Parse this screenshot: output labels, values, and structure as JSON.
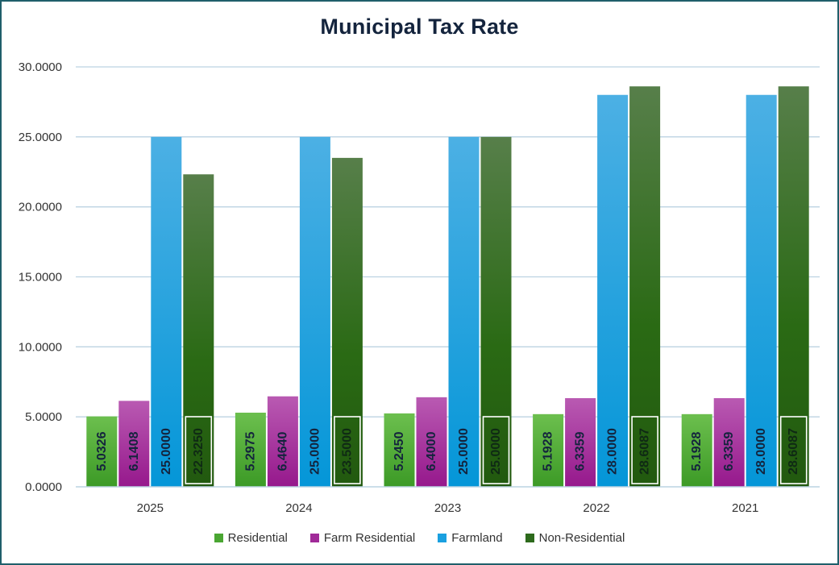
{
  "chart_data": {
    "type": "bar",
    "title": "Municipal Tax Rate",
    "xlabel": "",
    "ylabel": "",
    "categories": [
      "2025",
      "2024",
      "2023",
      "2022",
      "2021"
    ],
    "ylim": [
      0,
      30
    ],
    "yticks": [
      "0.0000",
      "5.0000",
      "10.0000",
      "15.0000",
      "20.0000",
      "25.0000",
      "30.0000"
    ],
    "grid": true,
    "legend_position": "bottom",
    "series": [
      {
        "name": "Residential",
        "color": "#4aa632",
        "values": [
          5.0326,
          5.2975,
          5.245,
          5.1928,
          5.1928
        ],
        "labels": [
          "5.0326",
          "5.2975",
          "5.2450",
          "5.1928",
          "5.1928"
        ]
      },
      {
        "name": "Farm Residential",
        "color": "#a02a98",
        "values": [
          6.1408,
          6.464,
          6.4,
          6.3359,
          6.3359
        ],
        "labels": [
          "6.1408",
          "6.4640",
          "6.4000",
          "6.3359",
          "6.3359"
        ]
      },
      {
        "name": "Farmland",
        "color": "#1aa0e0",
        "values": [
          25.0,
          25.0,
          25.0,
          28.0,
          28.0
        ],
        "labels": [
          "25.0000",
          "25.0000",
          "25.0000",
          "28.0000",
          "28.0000"
        ]
      },
      {
        "name": "Non-Residential",
        "color": "#2d6a1c",
        "values": [
          22.325,
          23.5,
          25.0,
          28.6087,
          28.6087
        ],
        "labels": [
          "22.3250",
          "23.5000",
          "25.0000",
          "28.6087",
          "28.6087"
        ]
      }
    ]
  }
}
